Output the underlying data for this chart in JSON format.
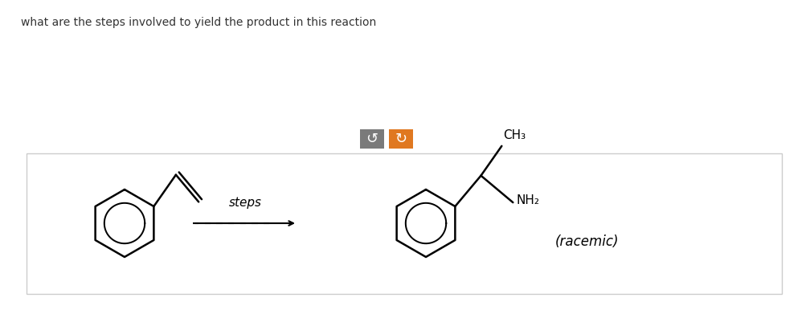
{
  "title_text": "what are the steps involved to yield the product in this reaction",
  "title_fontsize": 10,
  "title_color": "#333333",
  "bg_color": "#ffffff",
  "steps_label": "steps",
  "racemic_label": "(racemic)",
  "ch3_label": "CH₃",
  "nh2_label": "NH₂",
  "button1_color": "#7a7a7a",
  "button2_color": "#e07820",
  "button1_symbol": "↺",
  "button2_symbol": "↻",
  "box_edge_color": "#cccccc",
  "ring_r": 0.4,
  "lw": 1.8
}
